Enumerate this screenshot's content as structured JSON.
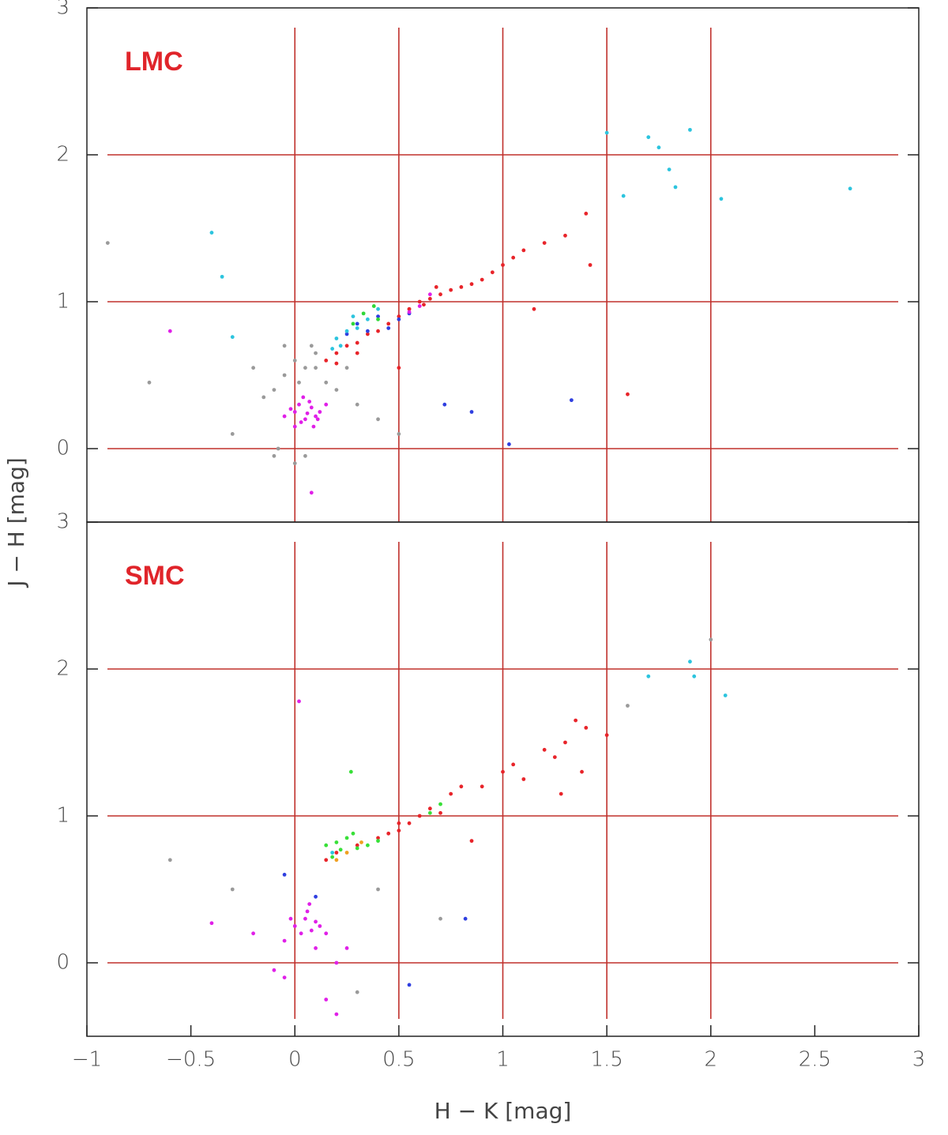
{
  "chart_data": [
    {
      "type": "scatter",
      "annotation": "LMC",
      "ylabel": "J − H [mag]",
      "xlim": [
        -1,
        3
      ],
      "ylim": [
        -0.5,
        3
      ],
      "yticks": [
        0,
        1,
        2,
        3
      ],
      "vlines": [
        0,
        0.5,
        1,
        1.5,
        2
      ],
      "hlines": [
        0,
        1,
        2
      ],
      "line_color": "#c0302c",
      "series": [
        {
          "color": "#9a9a9a",
          "x": [
            -0.05,
            0,
            0.05,
            0.1,
            -0.1,
            0.02,
            -0.15,
            0.08,
            -0.08,
            0,
            0.05,
            -0.1,
            0.15,
            0.2,
            -0.2,
            0.3,
            0.4,
            -0.3,
            0.5,
            -0.7,
            -0.9,
            0.1,
            -0.05,
            0.25
          ],
          "values": [
            0.5,
            0.6,
            0.55,
            0.65,
            0.4,
            0.45,
            0.35,
            0.7,
            0,
            -0.1,
            -0.05,
            -0.05,
            0.45,
            0.4,
            0.55,
            0.3,
            0.2,
            0.1,
            0.1,
            0.45,
            1.4,
            0.55,
            0.7,
            0.55
          ]
        },
        {
          "color": "#e8242a",
          "x": [
            0.15,
            0.2,
            0.25,
            0.3,
            0.35,
            0.4,
            0.45,
            0.5,
            0.55,
            0.6,
            0.65,
            0.7,
            0.75,
            0.8,
            0.9,
            0.95,
            1,
            1.05,
            1.1,
            1.2,
            1.3,
            1.4,
            0.5,
            0.55,
            0.62,
            0.68,
            0.3,
            0.2,
            1.15,
            1.42,
            1.6,
            0.85
          ],
          "values": [
            0.6,
            0.65,
            0.7,
            0.72,
            0.78,
            0.8,
            0.85,
            0.9,
            0.95,
            1,
            1.02,
            1.05,
            1.08,
            1.1,
            1.15,
            1.2,
            1.25,
            1.3,
            1.35,
            1.4,
            1.45,
            1.6,
            0.55,
            0.95,
            0.98,
            1.1,
            0.65,
            0.58,
            0.95,
            1.25,
            0.37,
            1.12
          ]
        },
        {
          "color": "#2f3fe0",
          "x": [
            0.3,
            0.35,
            0.4,
            0.45,
            0.5,
            0.25,
            0.55,
            1.03,
            1.33,
            0.85,
            0.72
          ],
          "values": [
            0.85,
            0.8,
            0.9,
            0.82,
            0.88,
            0.78,
            0.92,
            0.03,
            0.33,
            0.25,
            0.3
          ]
        },
        {
          "color": "#2cc4de",
          "x": [
            0.2,
            0.25,
            0.3,
            0.35,
            0.22,
            0.28,
            0.4,
            0.18,
            1.5,
            1.7,
            1.75,
            1.9,
            1.8,
            1.83,
            2.05,
            2.67,
            1.58,
            -0.4,
            -0.35,
            -0.3
          ],
          "values": [
            0.75,
            0.8,
            0.82,
            0.88,
            0.7,
            0.9,
            0.95,
            0.68,
            2.15,
            2.12,
            2.05,
            2.17,
            1.9,
            1.78,
            1.7,
            1.77,
            1.72,
            1.47,
            1.17,
            0.76
          ]
        },
        {
          "color": "#30d838",
          "x": [
            0.33,
            0.38,
            0.28,
            0.4
          ],
          "values": [
            0.92,
            0.97,
            0.85,
            0.88
          ]
        },
        {
          "color": "#e020e8",
          "x": [
            0,
            0.02,
            0.05,
            0.08,
            0.1,
            0.03,
            0.07,
            -0.02,
            0.12,
            0.06,
            0.04,
            0.09,
            -0.05,
            0.15,
            0.11,
            0,
            0.08,
            0.6,
            0.65,
            0.55,
            -0.6
          ],
          "values": [
            0.25,
            0.3,
            0.2,
            0.28,
            0.22,
            0.18,
            0.32,
            0.27,
            0.25,
            0.24,
            0.35,
            0.15,
            0.22,
            0.3,
            0.2,
            0.15,
            -0.3,
            0.97,
            1.05,
            0.93,
            0.8
          ]
        }
      ]
    },
    {
      "type": "scatter",
      "annotation": "SMC",
      "xlabel": "H − K [mag]",
      "xlim": [
        -1,
        3
      ],
      "ylim": [
        -0.5,
        3
      ],
      "yticks": [
        0,
        1,
        2,
        3
      ],
      "xticks": [
        {
          "value": -1,
          "label": "−1"
        },
        {
          "value": -0.5,
          "label": "−0.5"
        },
        0,
        0.5,
        1,
        1.5,
        2,
        2.5,
        3
      ],
      "vlines": [
        0,
        0.5,
        1,
        1.5,
        2
      ],
      "hlines": [
        0,
        1,
        2
      ],
      "line_color": "#c0302c",
      "series": [
        {
          "color": "#9a9a9a",
          "x": [
            1.6,
            2,
            -0.3,
            0.3,
            0.7,
            0.4,
            -0.6
          ],
          "values": [
            1.75,
            2.2,
            0.5,
            -0.2,
            0.3,
            0.5,
            0.7
          ]
        },
        {
          "color": "#e8242a",
          "x": [
            0.15,
            0.2,
            0.3,
            0.4,
            0.45,
            0.5,
            0.55,
            0.6,
            0.65,
            0.7,
            0.75,
            0.8,
            0.9,
            1,
            1.05,
            1.1,
            1.2,
            1.25,
            1.3,
            1.35,
            1.4,
            1.28,
            1.38,
            0.85,
            1.5,
            0.5
          ],
          "values": [
            0.7,
            0.75,
            0.8,
            0.85,
            0.88,
            0.9,
            0.95,
            1,
            1.05,
            1.02,
            1.15,
            1.2,
            1.2,
            1.3,
            1.35,
            1.25,
            1.45,
            1.4,
            1.5,
            1.65,
            1.6,
            1.15,
            1.3,
            0.83,
            1.55,
            0.95
          ]
        },
        {
          "color": "#38e038",
          "x": [
            0.15,
            0.2,
            0.22,
            0.25,
            0.3,
            0.35,
            0.28,
            0.18,
            0.4,
            0.27,
            0.7,
            0.65
          ],
          "values": [
            0.8,
            0.82,
            0.77,
            0.85,
            0.78,
            0.8,
            0.88,
            0.72,
            0.83,
            1.3,
            1.08,
            1.02
          ]
        },
        {
          "color": "#f0a020",
          "x": [
            0.2,
            0.25,
            0.32
          ],
          "values": [
            0.7,
            0.75,
            0.82
          ]
        },
        {
          "color": "#2f3fe0",
          "x": [
            -0.05,
            0.55,
            0.82,
            0.1
          ],
          "values": [
            0.6,
            -0.15,
            0.3,
            0.45
          ]
        },
        {
          "color": "#2cc4de",
          "x": [
            1.9,
            1.92,
            2.07,
            0.18,
            1.7
          ],
          "values": [
            2.05,
            1.95,
            1.82,
            0.75,
            1.95
          ]
        },
        {
          "color": "#e020e8",
          "x": [
            0,
            0.05,
            0.08,
            0.1,
            0.03,
            0.06,
            -0.02,
            0.12,
            0.15,
            -0.05,
            0.07,
            0.1,
            -0.1,
            -0.05,
            0.2,
            0.25,
            -0.2,
            -0.4,
            0.02,
            0.15,
            0.2
          ],
          "values": [
            0.25,
            0.3,
            0.22,
            0.28,
            0.2,
            0.35,
            0.3,
            0.25,
            0.2,
            0.15,
            0.4,
            0.1,
            -0.05,
            -0.1,
            0,
            0.1,
            0.2,
            0.27,
            1.78,
            -0.25,
            -0.35
          ]
        }
      ]
    }
  ]
}
